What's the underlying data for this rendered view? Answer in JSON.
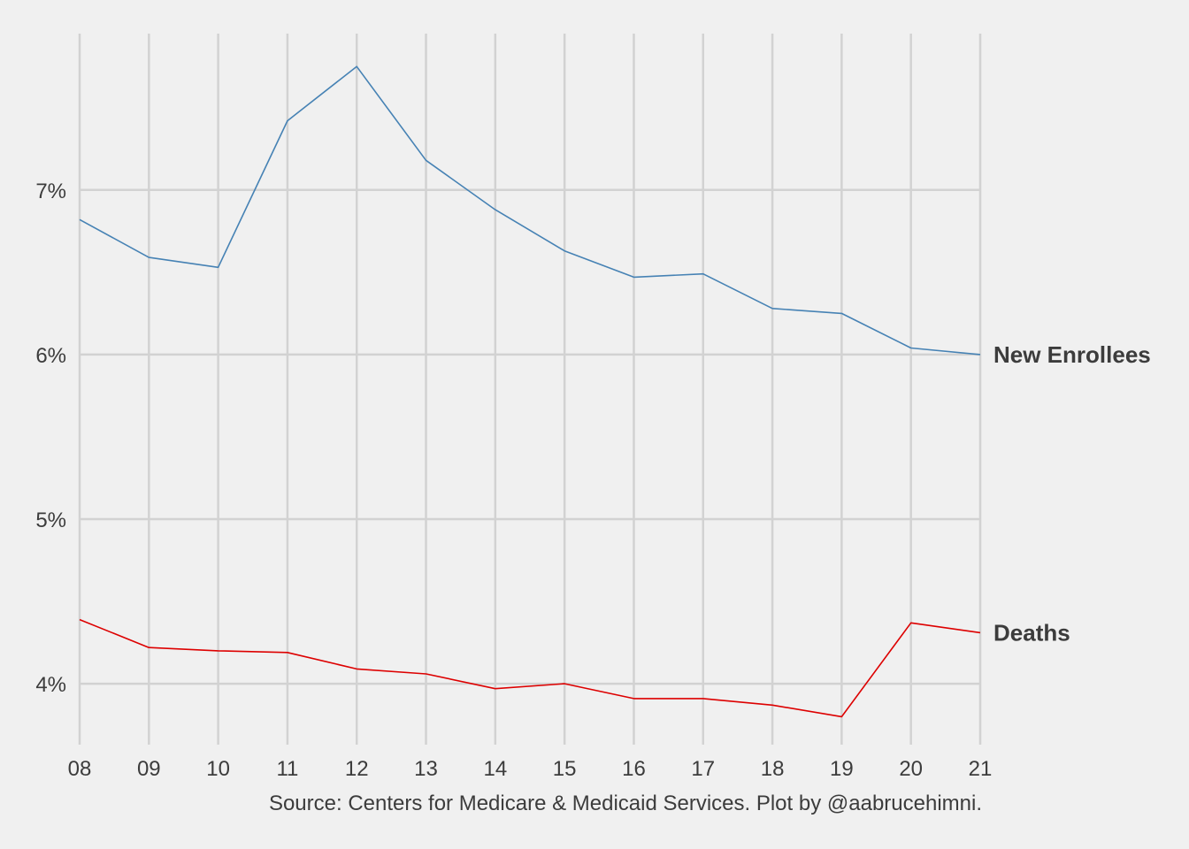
{
  "chart_data": {
    "type": "line",
    "title": "",
    "xlabel": "",
    "ylabel": "",
    "x": [
      "08",
      "09",
      "10",
      "11",
      "12",
      "13",
      "14",
      "15",
      "16",
      "17",
      "18",
      "19",
      "20",
      "21"
    ],
    "y_ticks": [
      4,
      5,
      6,
      7
    ],
    "y_tick_labels": [
      "4%",
      "5%",
      "6%",
      "7%"
    ],
    "ylim": [
      3.63,
      7.95
    ],
    "grid": true,
    "legend": "direct labels at right end of lines",
    "series": [
      {
        "name": "New Enrollees",
        "color": "#4682b4",
        "values": [
          6.82,
          6.59,
          6.53,
          7.42,
          7.75,
          7.18,
          6.88,
          6.63,
          6.47,
          6.49,
          6.28,
          6.25,
          6.04,
          6.0
        ]
      },
      {
        "name": "Deaths",
        "color": "#dd0000",
        "values": [
          4.39,
          4.22,
          4.2,
          4.19,
          4.09,
          4.06,
          3.97,
          4.0,
          3.91,
          3.91,
          3.87,
          3.8,
          4.37,
          4.31
        ]
      }
    ],
    "caption": "Source: Centers for Medicare & Medicaid Services. Plot by @aabrucehimni."
  }
}
